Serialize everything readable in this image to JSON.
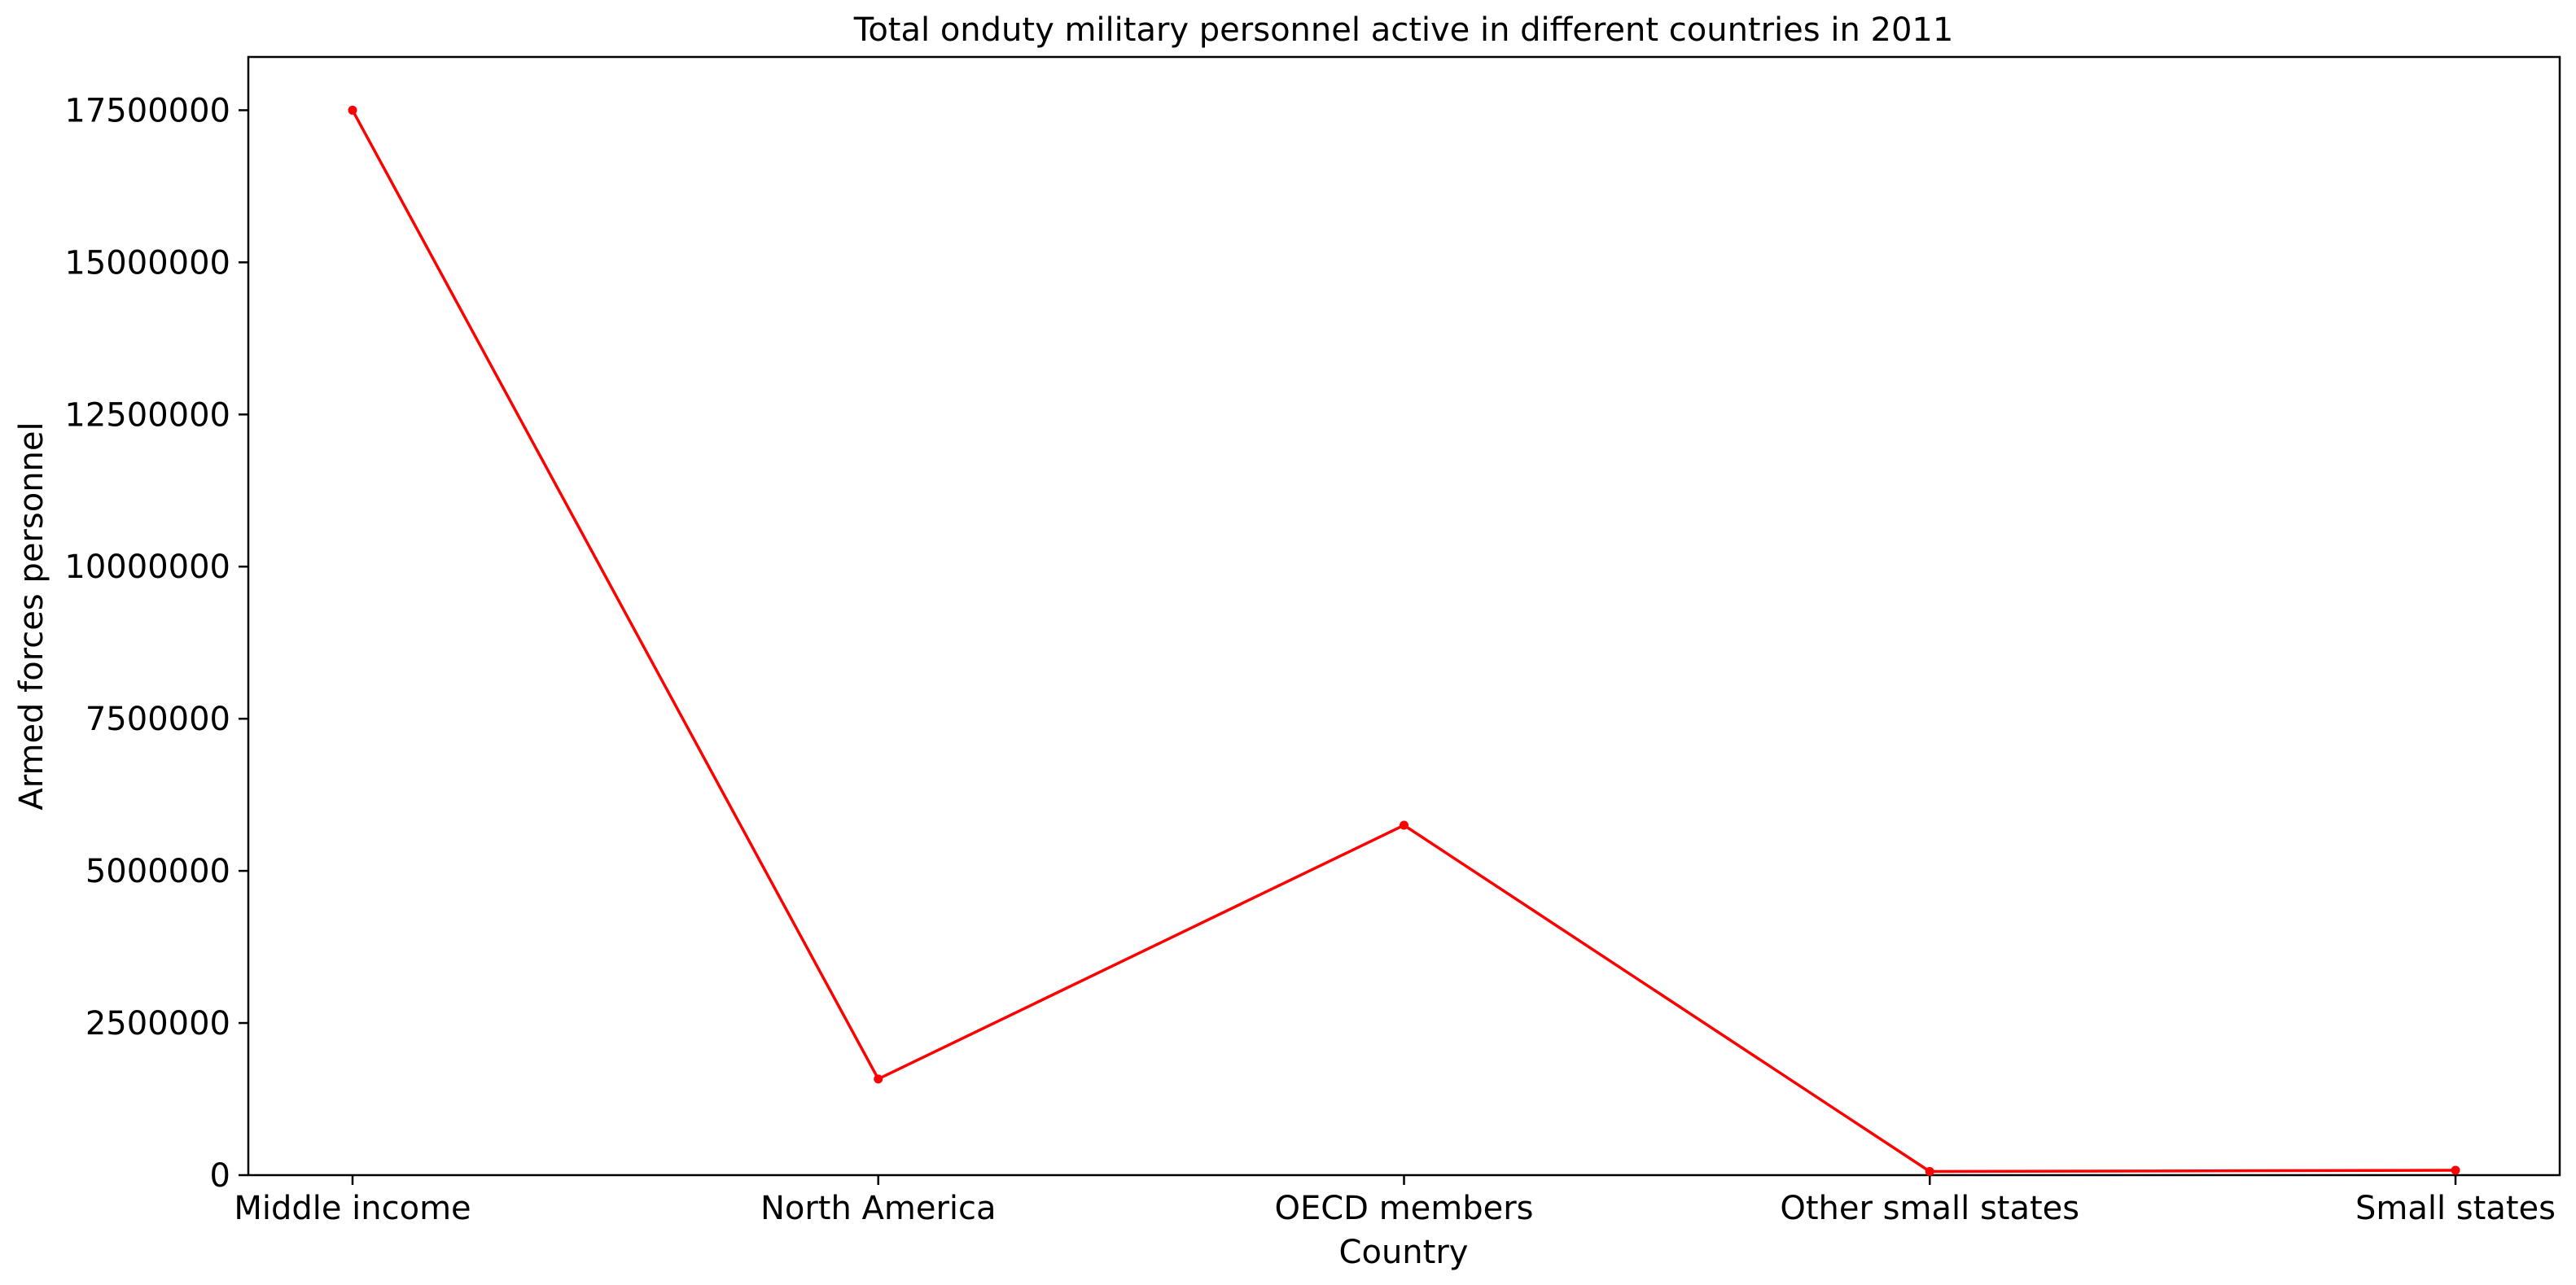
{
  "chart_data": {
    "type": "line",
    "title": "Total onduty military personnel active in different countries in 2011",
    "xlabel": "Country",
    "ylabel": "Armed forces personnel",
    "categories": [
      "Middle income",
      "North America",
      "OECD members",
      "Other small states",
      "Small states"
    ],
    "series": [
      {
        "values": [
          17500000,
          1580000,
          5750000,
          60000,
          80000
        ],
        "color": "#ff0000",
        "marker": "dot"
      }
    ],
    "yticks": [
      0,
      2500000,
      5000000,
      7500000,
      10000000,
      12500000,
      15000000,
      17500000
    ],
    "ytick_labels": [
      "0",
      "2500000",
      "5000000",
      "7500000",
      "10000000",
      "12500000",
      "15000000",
      "17500000"
    ],
    "ylim": [
      0,
      18375000
    ],
    "grid": false,
    "legend": "none"
  }
}
